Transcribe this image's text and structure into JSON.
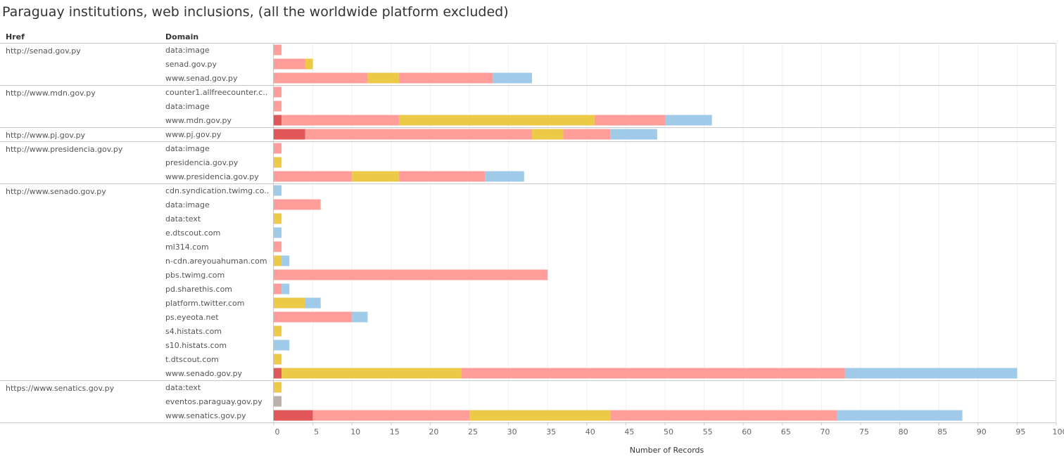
{
  "title": "Paraguay institutions, web inclusions, (all the worldwide platform excluded)",
  "headers": {
    "href": "Href",
    "domain": "Domain"
  },
  "colors": {
    "dark_red": "#e15759",
    "pink": "#ff9d9a",
    "yellow": "#edc948",
    "blue": "#a0cbe8",
    "gray": "#bab0ac"
  },
  "chart_data": {
    "type": "bar",
    "orientation": "horizontal",
    "stacked": true,
    "xlabel": "Number of Records",
    "xlim": [
      0,
      100
    ],
    "xticks": [
      0,
      5,
      10,
      15,
      20,
      25,
      30,
      35,
      40,
      45,
      50,
      55,
      60,
      65,
      70,
      75,
      80,
      85,
      90,
      95,
      100
    ],
    "grid": true,
    "groups": [
      {
        "href": "http://senad.gov.py",
        "rows": [
          {
            "domain": "data:image",
            "segments": [
              {
                "color": "pink",
                "value": 1
              }
            ]
          },
          {
            "domain": "senad.gov.py",
            "segments": [
              {
                "color": "pink",
                "value": 4
              },
              {
                "color": "yellow",
                "value": 1
              }
            ]
          },
          {
            "domain": "www.senad.gov.py",
            "segments": [
              {
                "color": "pink",
                "value": 12
              },
              {
                "color": "yellow",
                "value": 4
              },
              {
                "color": "pink",
                "value": 12
              },
              {
                "color": "blue",
                "value": 5
              }
            ]
          }
        ]
      },
      {
        "href": "http://www.mdn.gov.py",
        "rows": [
          {
            "domain": "counter1.allfreecounter.c..",
            "segments": [
              {
                "color": "pink",
                "value": 1
              }
            ]
          },
          {
            "domain": "data:image",
            "segments": [
              {
                "color": "pink",
                "value": 1
              }
            ]
          },
          {
            "domain": "www.mdn.gov.py",
            "segments": [
              {
                "color": "dark_red",
                "value": 1
              },
              {
                "color": "pink",
                "value": 15
              },
              {
                "color": "yellow",
                "value": 25
              },
              {
                "color": "pink",
                "value": 9
              },
              {
                "color": "blue",
                "value": 6
              }
            ]
          }
        ]
      },
      {
        "href": "http://www.pj.gov.py",
        "rows": [
          {
            "domain": "www.pj.gov.py",
            "segments": [
              {
                "color": "dark_red",
                "value": 4
              },
              {
                "color": "pink",
                "value": 29
              },
              {
                "color": "yellow",
                "value": 4
              },
              {
                "color": "pink",
                "value": 6
              },
              {
                "color": "blue",
                "value": 6
              }
            ]
          }
        ]
      },
      {
        "href": "http://www.presidencia.gov.py",
        "rows": [
          {
            "domain": "data:image",
            "segments": [
              {
                "color": "pink",
                "value": 1
              }
            ]
          },
          {
            "domain": "presidencia.gov.py",
            "segments": [
              {
                "color": "yellow",
                "value": 1
              }
            ]
          },
          {
            "domain": "www.presidencia.gov.py",
            "segments": [
              {
                "color": "pink",
                "value": 10
              },
              {
                "color": "yellow",
                "value": 6
              },
              {
                "color": "pink",
                "value": 11
              },
              {
                "color": "blue",
                "value": 5
              }
            ]
          }
        ]
      },
      {
        "href": "http://www.senado.gov.py",
        "rows": [
          {
            "domain": "cdn.syndication.twimg.co..",
            "segments": [
              {
                "color": "blue",
                "value": 1
              }
            ]
          },
          {
            "domain": "data:image",
            "segments": [
              {
                "color": "pink",
                "value": 6
              }
            ]
          },
          {
            "domain": "data:text",
            "segments": [
              {
                "color": "yellow",
                "value": 1
              }
            ]
          },
          {
            "domain": "e.dtscout.com",
            "segments": [
              {
                "color": "blue",
                "value": 1
              }
            ]
          },
          {
            "domain": "ml314.com",
            "segments": [
              {
                "color": "pink",
                "value": 1
              }
            ]
          },
          {
            "domain": "n-cdn.areyouahuman.com",
            "segments": [
              {
                "color": "yellow",
                "value": 1
              },
              {
                "color": "blue",
                "value": 1
              }
            ]
          },
          {
            "domain": "pbs.twimg.com",
            "segments": [
              {
                "color": "pink",
                "value": 35
              }
            ]
          },
          {
            "domain": "pd.sharethis.com",
            "segments": [
              {
                "color": "pink",
                "value": 1
              },
              {
                "color": "blue",
                "value": 1
              }
            ]
          },
          {
            "domain": "platform.twitter.com",
            "segments": [
              {
                "color": "yellow",
                "value": 4
              },
              {
                "color": "blue",
                "value": 2
              }
            ]
          },
          {
            "domain": "ps.eyeota.net",
            "segments": [
              {
                "color": "pink",
                "value": 10
              },
              {
                "color": "blue",
                "value": 2
              }
            ]
          },
          {
            "domain": "s4.histats.com",
            "segments": [
              {
                "color": "yellow",
                "value": 1
              }
            ]
          },
          {
            "domain": "s10.histats.com",
            "segments": [
              {
                "color": "blue",
                "value": 2
              }
            ]
          },
          {
            "domain": "t.dtscout.com",
            "segments": [
              {
                "color": "yellow",
                "value": 1
              }
            ]
          },
          {
            "domain": "www.senado.gov.py",
            "segments": [
              {
                "color": "dark_red",
                "value": 1
              },
              {
                "color": "yellow",
                "value": 23
              },
              {
                "color": "pink",
                "value": 49
              },
              {
                "color": "blue",
                "value": 22
              }
            ]
          }
        ]
      },
      {
        "href": "https://www.senatics.gov.py",
        "rows": [
          {
            "domain": "data:text",
            "segments": [
              {
                "color": "yellow",
                "value": 1
              }
            ]
          },
          {
            "domain": "eventos.paraguay.gov.py",
            "segments": [
              {
                "color": "gray",
                "value": 1
              }
            ]
          },
          {
            "domain": "www.senatics.gov.py",
            "segments": [
              {
                "color": "dark_red",
                "value": 5
              },
              {
                "color": "pink",
                "value": 20
              },
              {
                "color": "yellow",
                "value": 18
              },
              {
                "color": "pink",
                "value": 29
              },
              {
                "color": "blue",
                "value": 16
              }
            ]
          }
        ]
      }
    ]
  }
}
